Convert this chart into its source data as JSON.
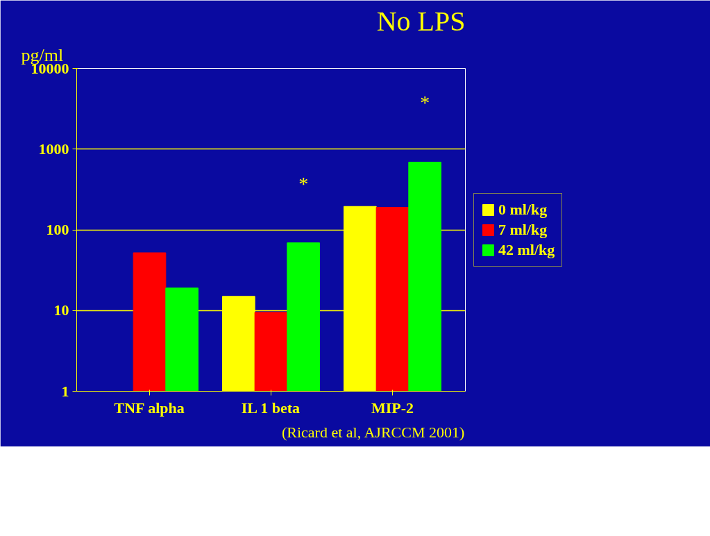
{
  "chart_data": {
    "type": "bar",
    "title": "No LPS",
    "ylabel": "pg/ml",
    "categories": [
      "TNF alpha",
      "IL 1 beta",
      "MIP-2"
    ],
    "series": [
      {
        "name": "0 ml/kg",
        "color": "#ffff00",
        "values": [
          1,
          15,
          195
        ]
      },
      {
        "name": "7 ml/kg",
        "color": "#ff0000",
        "values": [
          52,
          9.5,
          190
        ]
      },
      {
        "name": "42 ml/kg",
        "color": "#00ff00",
        "values": [
          19,
          69,
          690
        ]
      }
    ],
    "log": "y",
    "ylim": [
      1,
      10000
    ],
    "yticks": [
      1,
      10,
      100,
      1000,
      10000
    ],
    "grid": "y",
    "legend": "right",
    "annotations": [
      "*",
      "*",
      "(Ricard et al, AJRCCM 2001)"
    ]
  }
}
